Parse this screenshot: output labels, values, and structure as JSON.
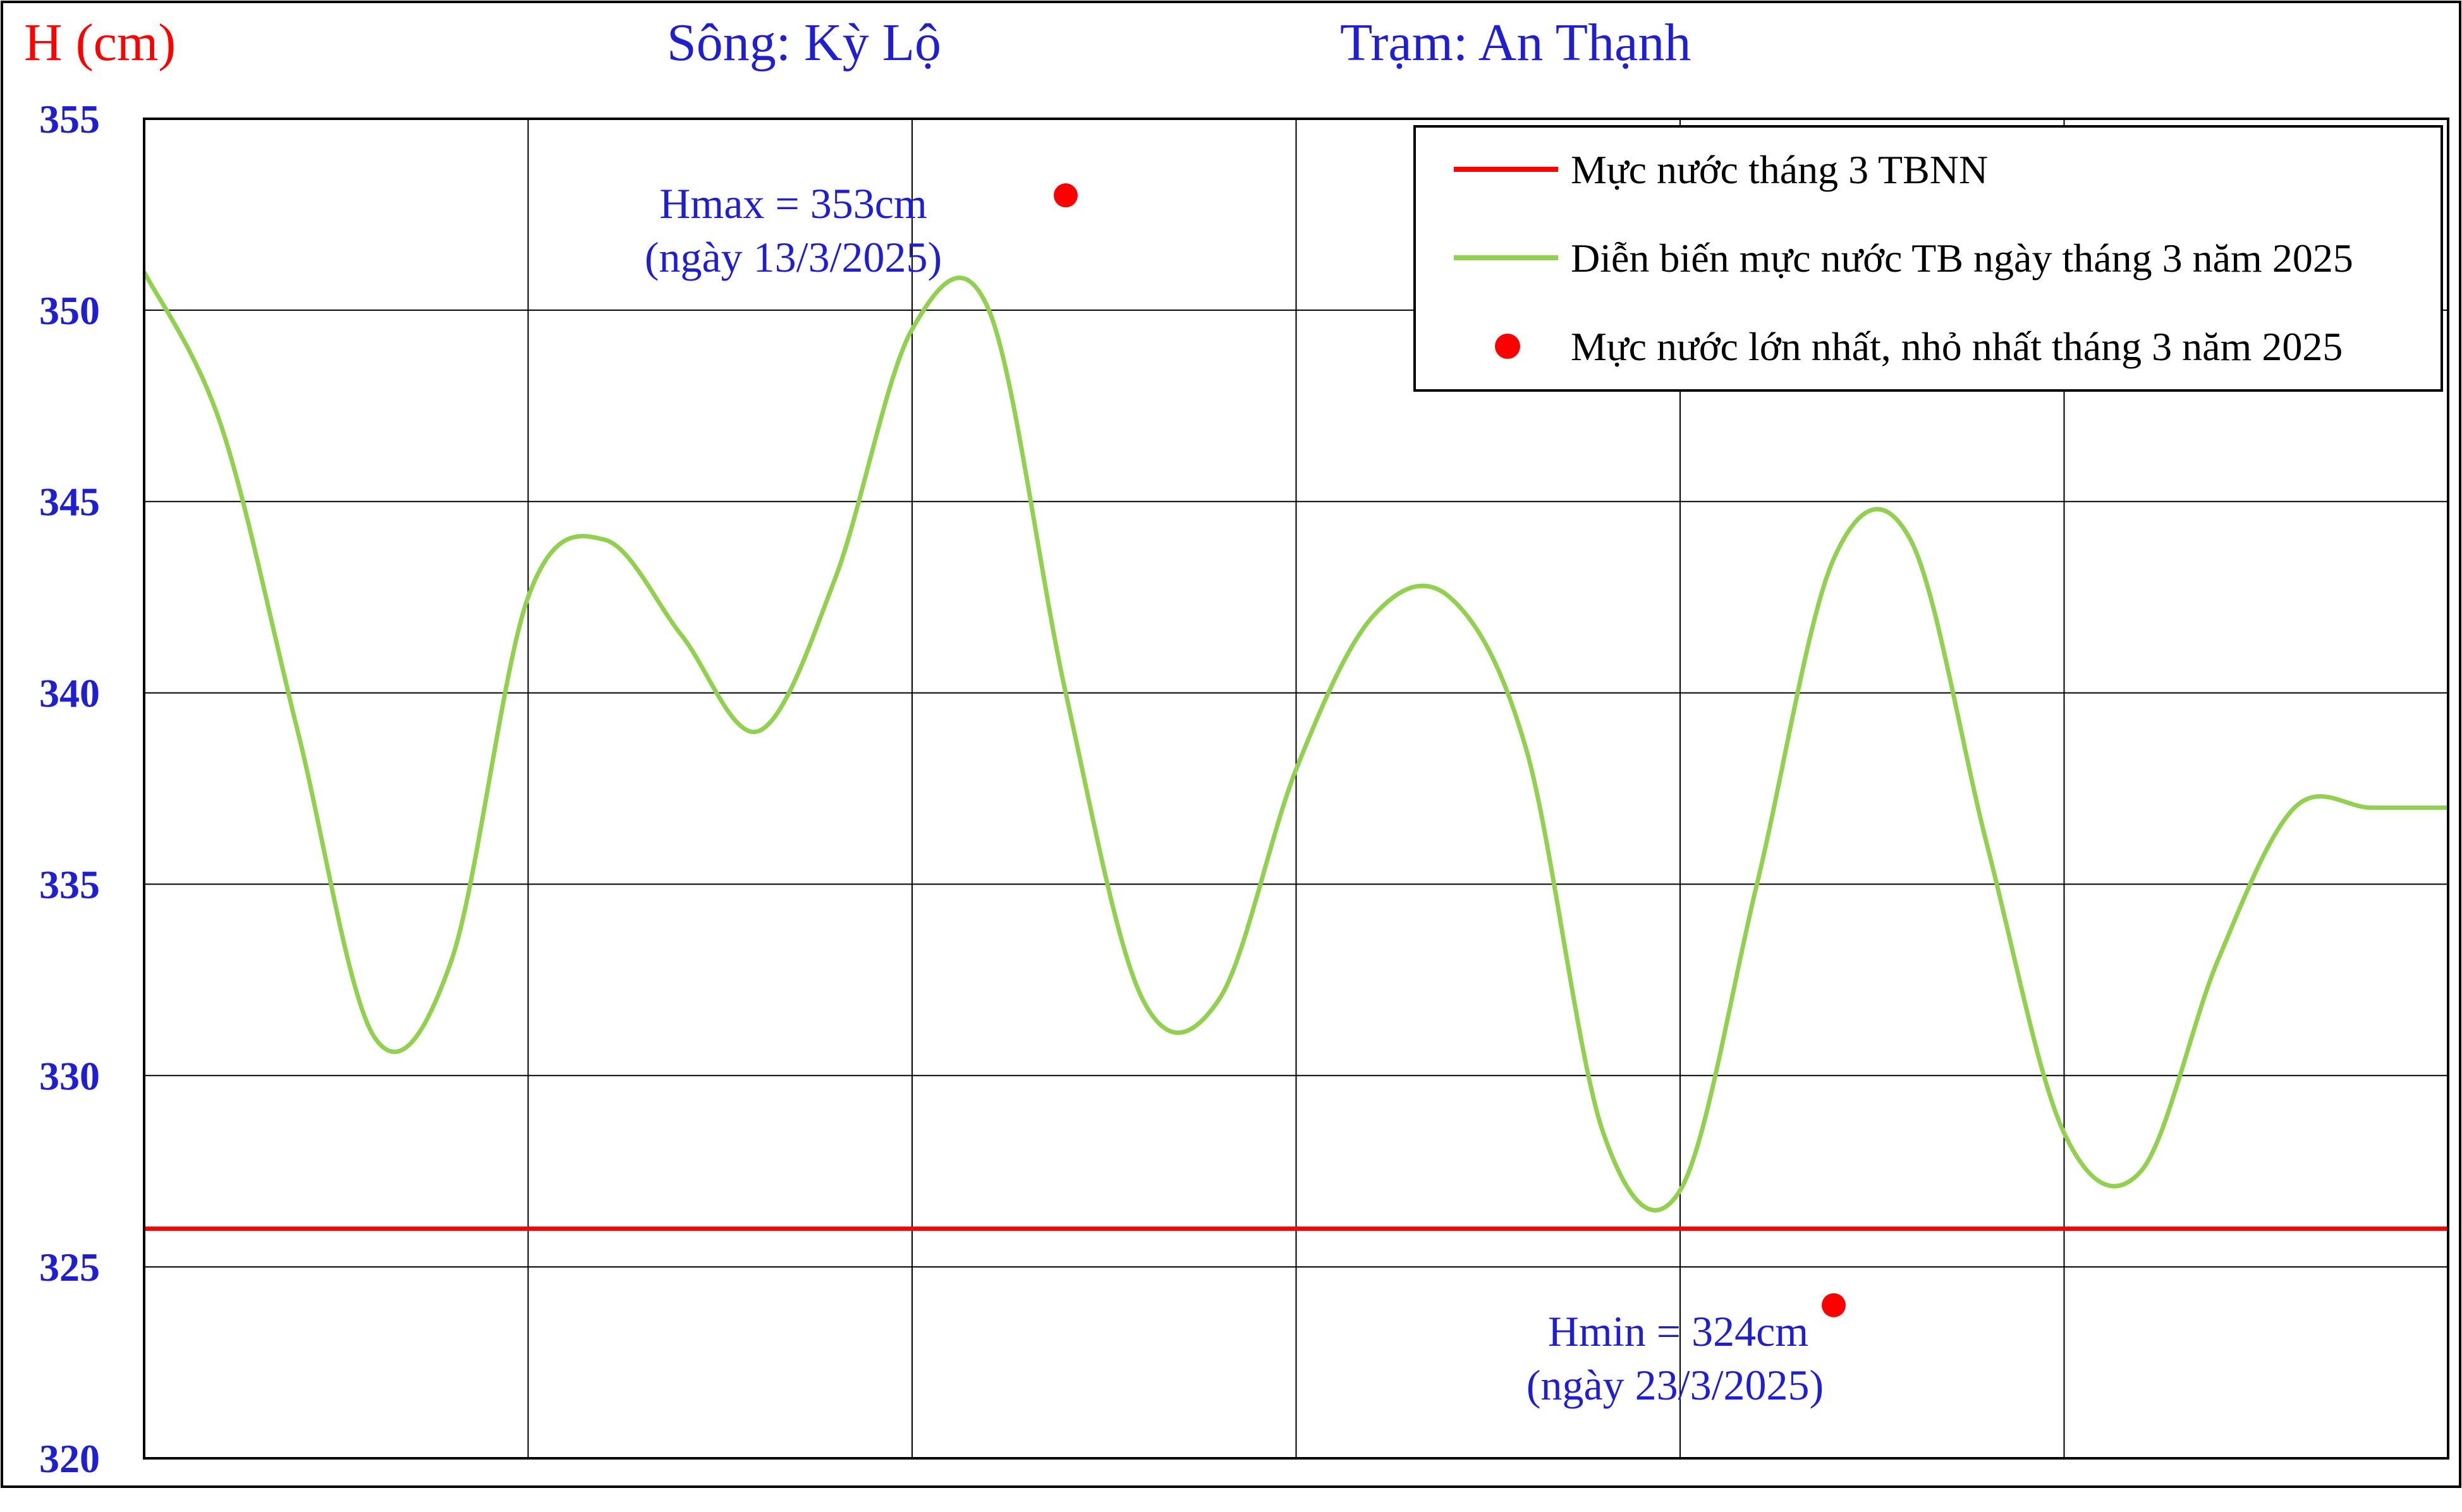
{
  "chart_data": {
    "type": "line",
    "ylabel": "H (cm)",
    "river_label": "Sông: Kỳ Lộ",
    "station_label": "Trạm: An Thạnh",
    "ylim": [
      320,
      355
    ],
    "yticks": [
      320,
      325,
      330,
      335,
      340,
      345,
      350,
      355
    ],
    "xlim": [
      1,
      31
    ],
    "grid": true,
    "legend_position": "top-right",
    "colors": {
      "ylabel": "#ff0000",
      "header": "#1f1fd1",
      "ticks": "#1f1fd1",
      "avg_line": "#ff0000",
      "daily_line": "#92d050",
      "extreme_points": "#ff0000",
      "annotations": "#1f1fd1"
    },
    "series": [
      {
        "name": "Mực nước tháng 3 TBNN",
        "kind": "hline",
        "value": 326
      },
      {
        "name": "Diễn biến mực nước TB ngày tháng 3 năm 2025",
        "kind": "line",
        "x": [
          1,
          2,
          3,
          4,
          5,
          6,
          7,
          8,
          9,
          10,
          11,
          12,
          13,
          14,
          15,
          16,
          17,
          18,
          19,
          20,
          21,
          22,
          23,
          24,
          25,
          26,
          27,
          28,
          29,
          30,
          31
        ],
        "values": [
          351,
          347,
          339,
          331,
          333,
          342.5,
          344,
          341.5,
          339,
          343,
          349.5,
          350,
          340,
          332,
          332,
          338,
          342,
          342.5,
          338.5,
          328.5,
          327,
          335,
          343.5,
          344,
          336,
          328.5,
          327.5,
          333,
          337,
          337,
          337
        ]
      },
      {
        "name": "Mực nước lớn nhất, nhỏ nhất tháng 3 năm 2025",
        "kind": "points",
        "points": [
          {
            "x": 13,
            "y": 353
          },
          {
            "x": 23,
            "y": 324
          }
        ]
      }
    ],
    "annotations": [
      {
        "line1": "Hmax = 353cm",
        "line2": "(ngày 13/3/2025)"
      },
      {
        "line1": "Hmin = 324cm",
        "line2": "(ngày 23/3/2025)"
      }
    ]
  }
}
